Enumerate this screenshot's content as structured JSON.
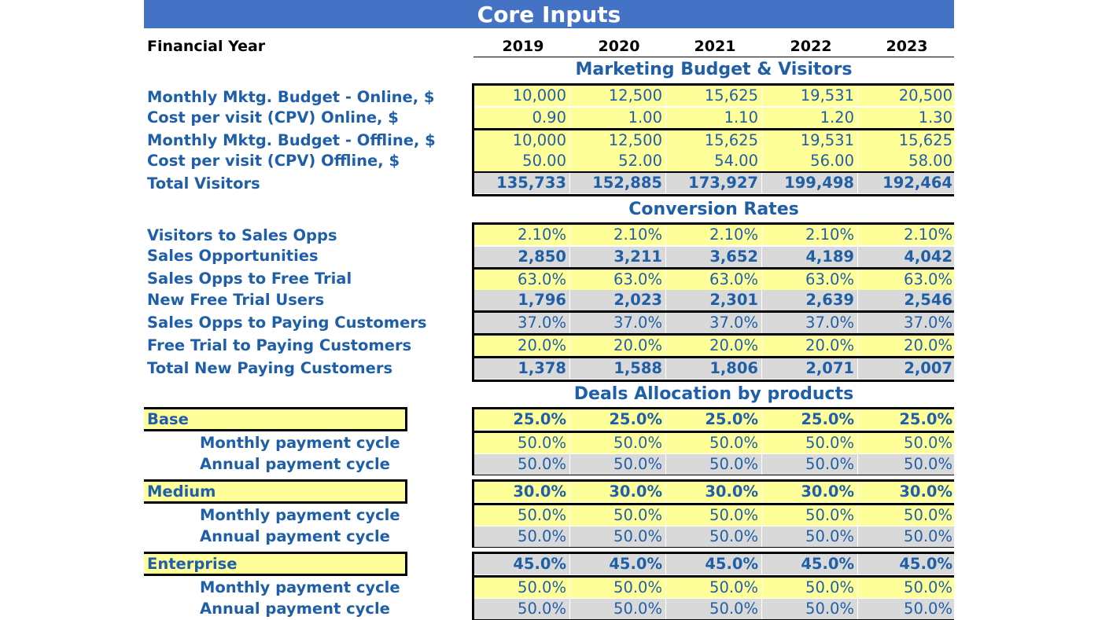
{
  "title": "Core Inputs",
  "financial_year_label": "Financial Year",
  "years": [
    "2019",
    "2020",
    "2021",
    "2022",
    "2023"
  ],
  "marketing": {
    "heading": "Marketing Budget & Visitors",
    "rows": [
      {
        "label": "Monthly Mktg. Budget - Online, $",
        "values": [
          "10,000",
          "12,500",
          "15,625",
          "19,531",
          "20,500"
        ]
      },
      {
        "label": "Cost per visit (CPV) Online, $",
        "values": [
          "0.90",
          "1.00",
          "1.10",
          "1.20",
          "1.30"
        ]
      },
      {
        "label": "Monthly Mktg. Budget - Offline, $",
        "values": [
          "10,000",
          "12,500",
          "15,625",
          "19,531",
          "15,625"
        ]
      },
      {
        "label": "Cost per visit (CPV) Offline, $",
        "values": [
          "50.00",
          "52.00",
          "54.00",
          "56.00",
          "58.00"
        ]
      },
      {
        "label": "Total Visitors",
        "values": [
          "135,733",
          "152,885",
          "173,927",
          "199,498",
          "192,464"
        ]
      }
    ]
  },
  "conversion": {
    "heading": "Conversion Rates",
    "rows": [
      {
        "label": "Visitors to Sales Opps",
        "values": [
          "2.10%",
          "2.10%",
          "2.10%",
          "2.10%",
          "2.10%"
        ]
      },
      {
        "label": "Sales Opportunities",
        "values": [
          "2,850",
          "3,211",
          "3,652",
          "4,189",
          "4,042"
        ]
      },
      {
        "label": "Sales Opps to Free Trial",
        "values": [
          "63.0%",
          "63.0%",
          "63.0%",
          "63.0%",
          "63.0%"
        ]
      },
      {
        "label": "New Free Trial Users",
        "values": [
          "1,796",
          "2,023",
          "2,301",
          "2,639",
          "2,546"
        ]
      },
      {
        "label": "Sales Opps to Paying Customers",
        "values": [
          "37.0%",
          "37.0%",
          "37.0%",
          "37.0%",
          "37.0%"
        ]
      },
      {
        "label": "Free Trial to Paying Customers",
        "values": [
          "20.0%",
          "20.0%",
          "20.0%",
          "20.0%",
          "20.0%"
        ]
      },
      {
        "label": "Total New Paying Customers",
        "values": [
          "1,378",
          "1,588",
          "1,806",
          "2,071",
          "2,007"
        ]
      }
    ]
  },
  "deals": {
    "heading": "Deals Allocation by products",
    "products": [
      {
        "name": "Base",
        "share": [
          "25.0%",
          "25.0%",
          "25.0%",
          "25.0%",
          "25.0%"
        ],
        "monthly_label": "Monthly payment cycle",
        "monthly": [
          "50.0%",
          "50.0%",
          "50.0%",
          "50.0%",
          "50.0%"
        ],
        "annual_label": "Annual payment cycle",
        "annual": [
          "50.0%",
          "50.0%",
          "50.0%",
          "50.0%",
          "50.0%"
        ]
      },
      {
        "name": "Medium",
        "share": [
          "30.0%",
          "30.0%",
          "30.0%",
          "30.0%",
          "30.0%"
        ],
        "monthly_label": "Monthly payment cycle",
        "monthly": [
          "50.0%",
          "50.0%",
          "50.0%",
          "50.0%",
          "50.0%"
        ],
        "annual_label": "Annual payment cycle",
        "annual": [
          "50.0%",
          "50.0%",
          "50.0%",
          "50.0%",
          "50.0%"
        ]
      },
      {
        "name": "Enterprise",
        "share": [
          "45.0%",
          "45.0%",
          "45.0%",
          "45.0%",
          "45.0%"
        ],
        "monthly_label": "Monthly payment cycle",
        "monthly": [
          "50.0%",
          "50.0%",
          "50.0%",
          "50.0%",
          "50.0%"
        ],
        "annual_label": "Annual payment cycle",
        "annual": [
          "50.0%",
          "50.0%",
          "50.0%",
          "50.0%",
          "50.0%"
        ]
      }
    ]
  },
  "colors": {
    "title_bar": "#4472c4",
    "input_cell": "#ffff99",
    "calc_cell": "#d9d9d9",
    "text_blue": "#1f5fa8"
  }
}
